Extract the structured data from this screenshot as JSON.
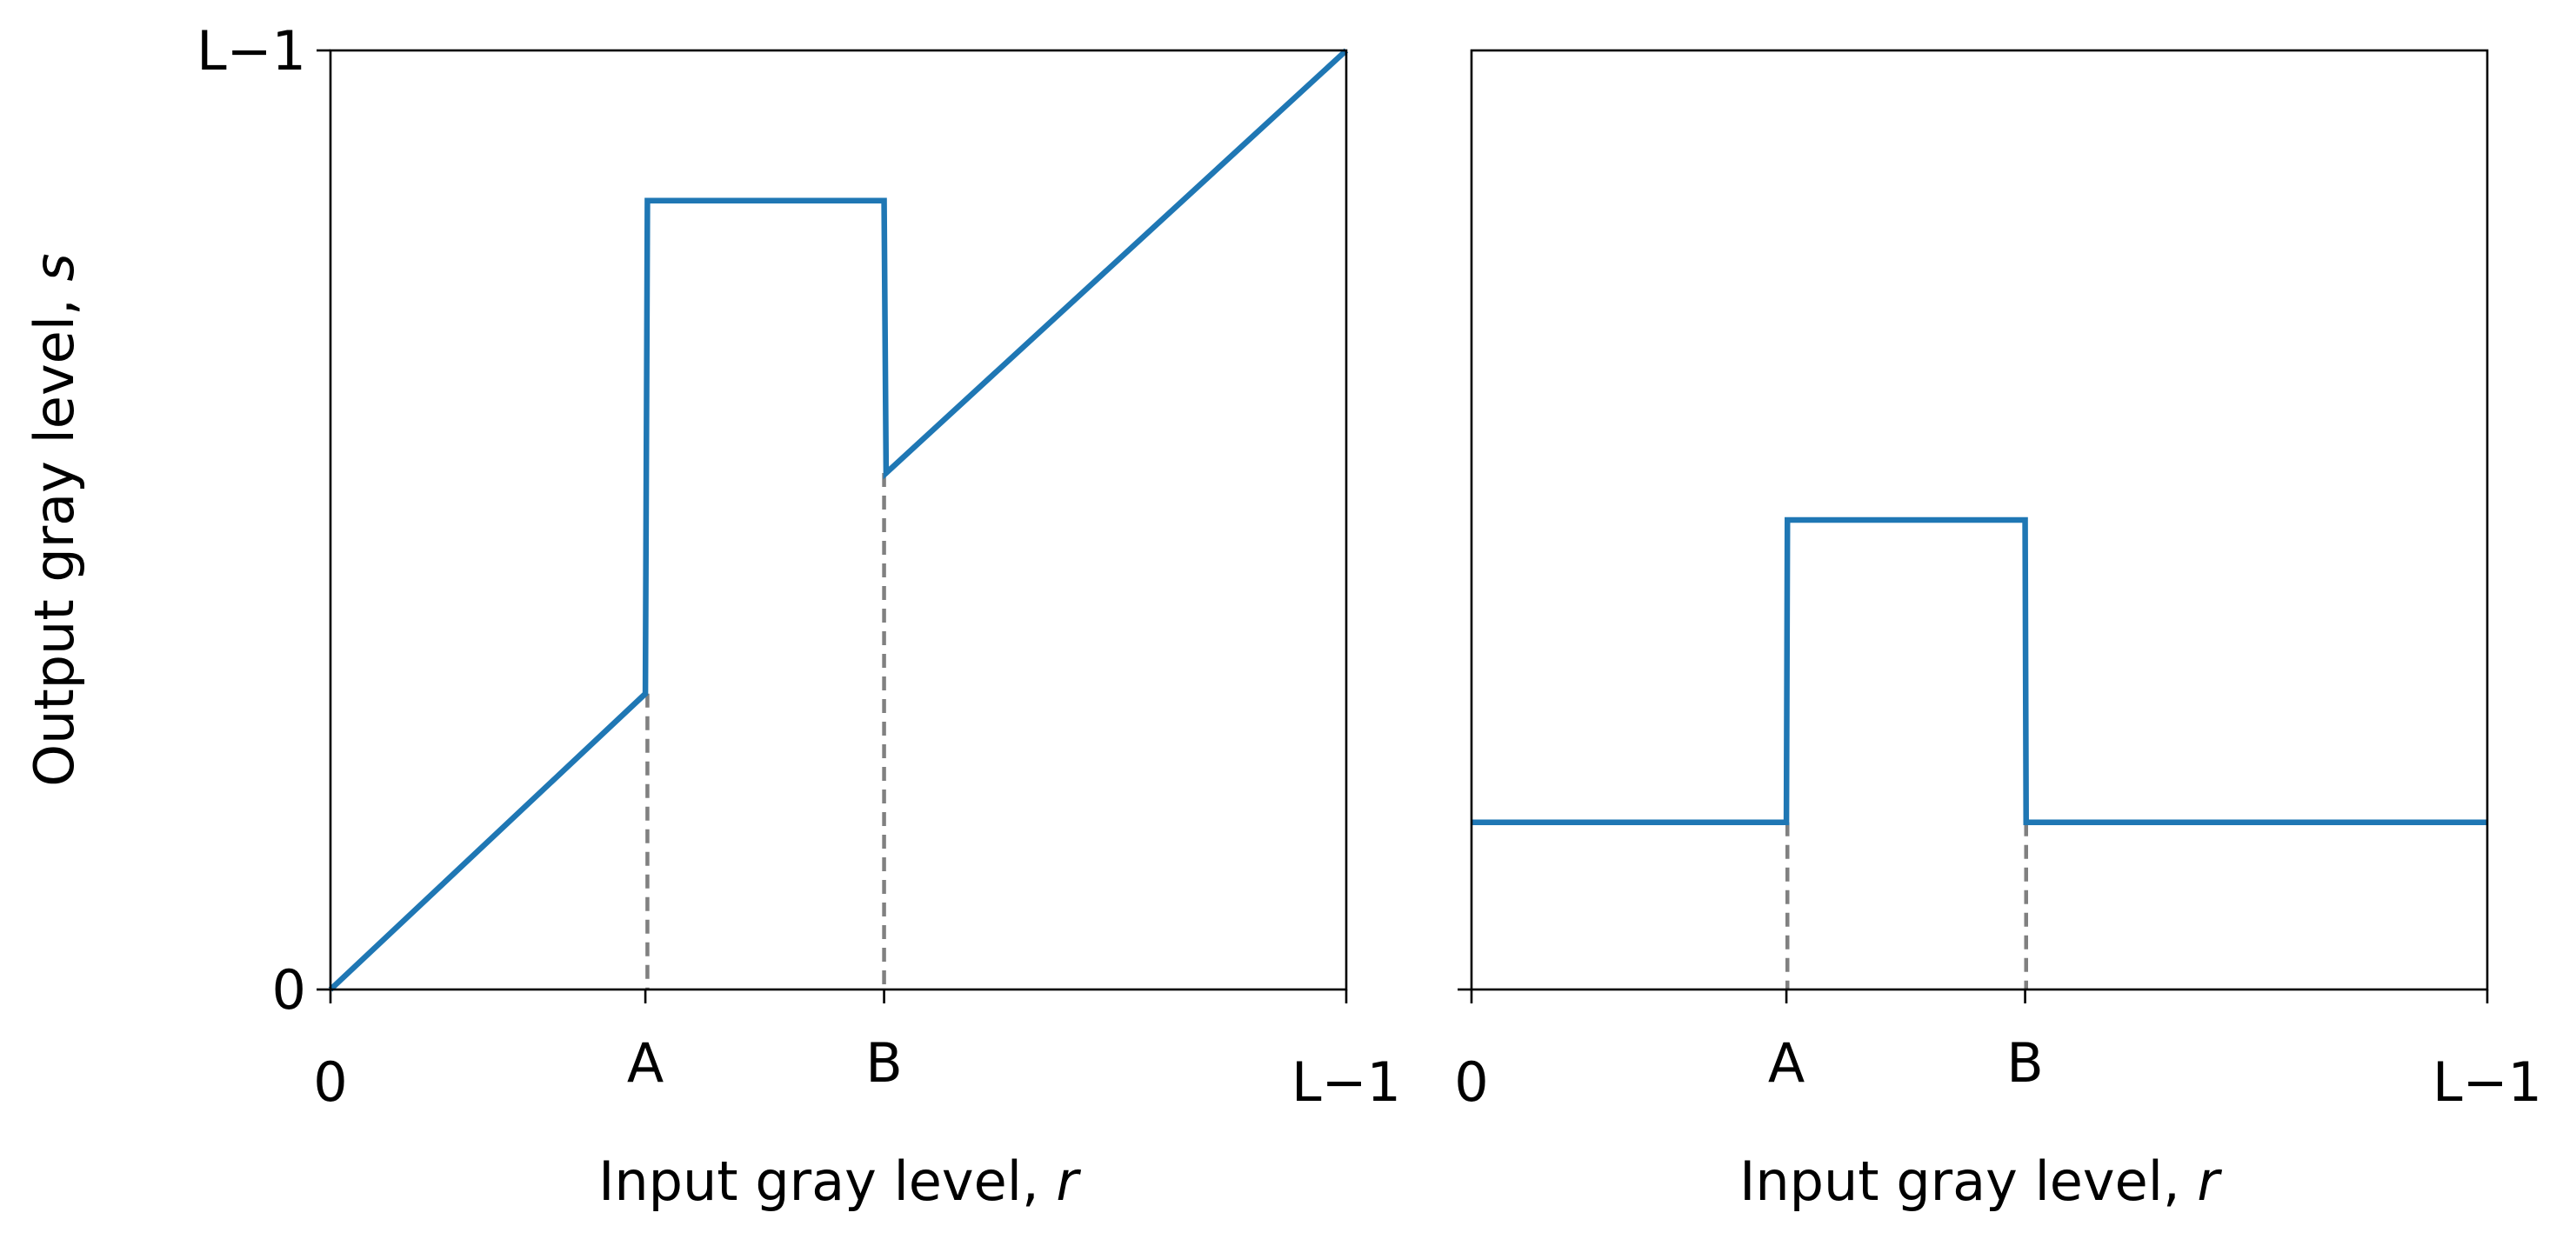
{
  "chart_data": [
    {
      "type": "line",
      "title": "",
      "xlabel": "Input gray level,",
      "xlabel_var": "r",
      "ylabel": "Output gray level,",
      "ylabel_var": "s",
      "xlim": [
        0,
        1
      ],
      "ylim": [
        0,
        1
      ],
      "grid": false,
      "xticks": [
        {
          "value": 0,
          "label": "0"
        },
        {
          "value": 0.31,
          "label": "A"
        },
        {
          "value": 0.545,
          "label": "B"
        },
        {
          "value": 1,
          "label": "L−1"
        }
      ],
      "yticks": [
        {
          "value": 0,
          "label": "0"
        },
        {
          "value": 1,
          "label": "L−1"
        }
      ],
      "series": [
        {
          "color": "#1f77b4",
          "x": [
            0,
            0.31,
            0.312,
            0.545,
            0.547,
            1
          ],
          "y": [
            0,
            0.315,
            0.84,
            0.84,
            0.55,
            1
          ]
        }
      ],
      "guides": [
        {
          "x": 0.312,
          "y": 0.315,
          "style": "dashed",
          "color": "#808080"
        },
        {
          "x": 0.545,
          "y": 0.55,
          "style": "dashed",
          "color": "#808080"
        }
      ]
    },
    {
      "type": "line",
      "title": "",
      "xlabel": "Input gray level,",
      "xlabel_var": "r",
      "ylabel": "",
      "xlim": [
        0,
        1
      ],
      "ylim": [
        0,
        1
      ],
      "grid": false,
      "xticks": [
        {
          "value": 0,
          "label": "0"
        },
        {
          "value": 0.31,
          "label": "A"
        },
        {
          "value": 0.545,
          "label": "B"
        },
        {
          "value": 1,
          "label": "L−1"
        }
      ],
      "yticks": [
        {
          "value": 0,
          "label": ""
        }
      ],
      "series": [
        {
          "color": "#1f77b4",
          "x": [
            0,
            0.31,
            0.311,
            0.545,
            0.546,
            1
          ],
          "y": [
            0.178,
            0.178,
            0.5,
            0.5,
            0.178,
            0.178
          ]
        }
      ],
      "guides": [
        {
          "x": 0.311,
          "y": 0.178,
          "style": "dashed",
          "color": "#808080"
        },
        {
          "x": 0.546,
          "y": 0.178,
          "style": "dashed",
          "color": "#808080"
        }
      ]
    }
  ]
}
